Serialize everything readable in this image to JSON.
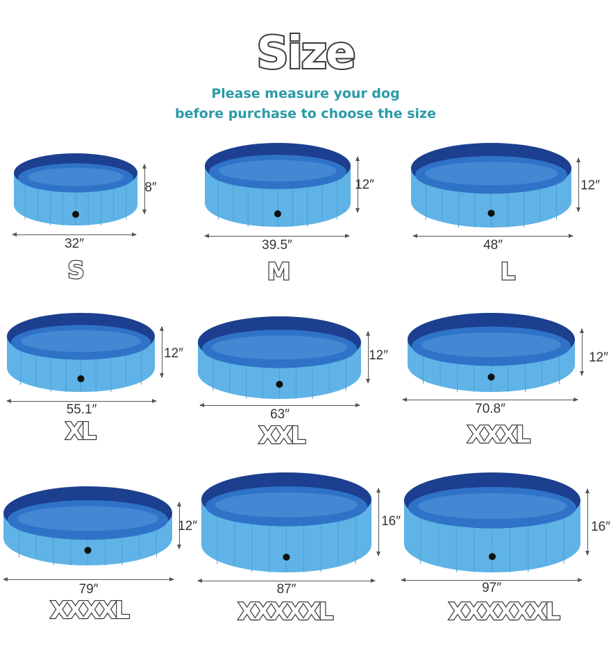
{
  "header": {
    "title": "Size",
    "subtitle_line1": "Please measure your dog",
    "subtitle_line2": "before purchase to choose the size"
  },
  "colors": {
    "pool_body": "#5fb3e6",
    "pool_rim": "#1c3f8f",
    "water": "#2f73c8",
    "subtitle": "#2a9aa6"
  },
  "sizes": [
    {
      "size": "S",
      "diameter": "32″",
      "height": "8″"
    },
    {
      "size": "M",
      "diameter": "39.5″",
      "height": "12″"
    },
    {
      "size": "L",
      "diameter": "48″",
      "height": "12″"
    },
    {
      "size": "XL",
      "diameter": "55.1″",
      "height": "12″"
    },
    {
      "size": "XXL",
      "diameter": "63″",
      "height": "12″"
    },
    {
      "size": "XXXL",
      "diameter": "70.8″",
      "height": "12″"
    },
    {
      "size": "XXXXL",
      "diameter": "79″",
      "height": "12″"
    },
    {
      "size": "XXXXXL",
      "diameter": "87″",
      "height": "16″"
    },
    {
      "size": "XXXXXXL",
      "diameter": "97″",
      "height": "16″"
    }
  ]
}
